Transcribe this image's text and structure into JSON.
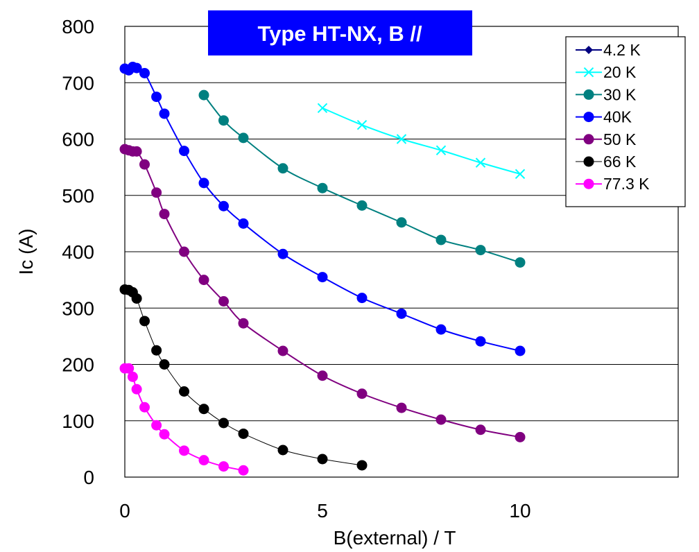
{
  "chart_data": {
    "type": "line",
    "title": "Type HT-NX, B //",
    "xlabel": "B(external) / T",
    "ylabel": "Ic (A)",
    "xlim": [
      0,
      14
    ],
    "ylim": [
      0,
      800
    ],
    "xticks": [
      0,
      5,
      10
    ],
    "yticks": [
      0,
      100,
      200,
      300,
      400,
      500,
      600,
      700,
      800
    ],
    "grid": "horizontal",
    "legend_position": "top-right",
    "colors": {
      "title_bg": "#0000ff",
      "title_text": "#ffffff"
    },
    "series": [
      {
        "name": "4.2 K",
        "color": "#000080",
        "marker": "diamond",
        "x": [],
        "y": []
      },
      {
        "name": "20 K",
        "color": "#00ffff",
        "marker": "x",
        "x": [
          5,
          6,
          7,
          8,
          9,
          10
        ],
        "y": [
          655,
          625,
          600,
          580,
          558,
          538
        ]
      },
      {
        "name": "30 K",
        "color": "#008080",
        "marker": "circle",
        "x": [
          2,
          2.5,
          3,
          4,
          5,
          6,
          7,
          8,
          9,
          10
        ],
        "y": [
          678,
          633,
          602,
          548,
          513,
          482,
          452,
          421,
          403,
          381
        ]
      },
      {
        "name": "40K",
        "color": "#0000ff",
        "marker": "circle",
        "x": [
          0,
          0.1,
          0.2,
          0.3,
          0.5,
          0.8,
          1,
          1.5,
          2,
          2.5,
          3,
          4,
          5,
          6,
          7,
          8,
          9,
          10
        ],
        "y": [
          725,
          722,
          728,
          726,
          717,
          675,
          645,
          579,
          522,
          481,
          450,
          396,
          355,
          318,
          290,
          262,
          241,
          224
        ]
      },
      {
        "name": "50 K",
        "color": "#800080",
        "marker": "circle",
        "x": [
          0,
          0.1,
          0.2,
          0.3,
          0.5,
          0.8,
          1,
          1.5,
          2,
          2.5,
          3,
          4,
          5,
          6,
          7,
          8,
          9,
          10
        ],
        "y": [
          582,
          580,
          578,
          578,
          555,
          505,
          467,
          400,
          350,
          312,
          273,
          224,
          180,
          148,
          123,
          102,
          84,
          71
        ]
      },
      {
        "name": "66 K",
        "color": "#000000",
        "marker": "circle",
        "x": [
          0,
          0.1,
          0.2,
          0.3,
          0.5,
          0.8,
          1,
          1.5,
          2,
          2.5,
          3,
          4,
          5,
          6
        ],
        "y": [
          333,
          332,
          328,
          317,
          277,
          225,
          200,
          152,
          121,
          96,
          77,
          48,
          32,
          21
        ]
      },
      {
        "name": "77.3 K",
        "color": "#ff00ff",
        "marker": "circle",
        "x": [
          0,
          0.1,
          0.2,
          0.3,
          0.5,
          0.8,
          1,
          1.5,
          2,
          2.5,
          3
        ],
        "y": [
          193,
          193,
          178,
          156,
          124,
          92,
          76,
          47,
          30,
          19,
          12
        ]
      }
    ]
  }
}
